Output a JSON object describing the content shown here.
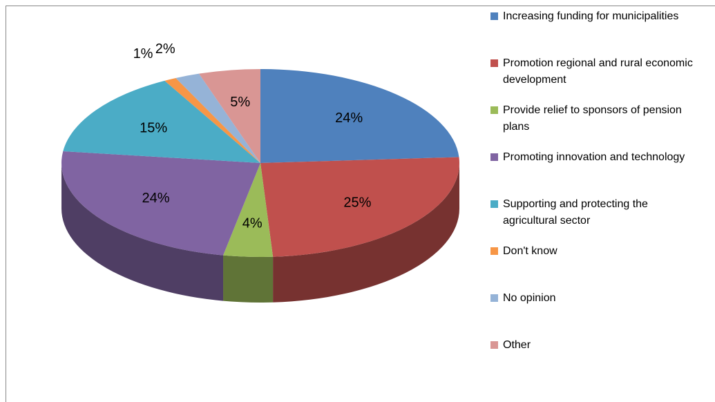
{
  "chart_data": {
    "type": "pie",
    "categories": [
      "Increasing funding for municipalities",
      "Promotion regional and rural economic development",
      "Provide relief to sponsors of pension plans",
      "Promoting innovation and technology",
      "Supporting and protecting the agricultural sector",
      "Don't know",
      "No opinion",
      "Other"
    ],
    "values": [
      24,
      25,
      4,
      24,
      15,
      1,
      2,
      5
    ],
    "value_labels": [
      "24%",
      "25%",
      "4%",
      "24%",
      "15%",
      "1%",
      "2%",
      "5%"
    ],
    "colors": [
      "#4f81bd",
      "#c0504d",
      "#9bbb59",
      "#8064a2",
      "#4bacc6",
      "#f79646",
      "#95b3d7",
      "#d99694"
    ],
    "legend": "right"
  }
}
